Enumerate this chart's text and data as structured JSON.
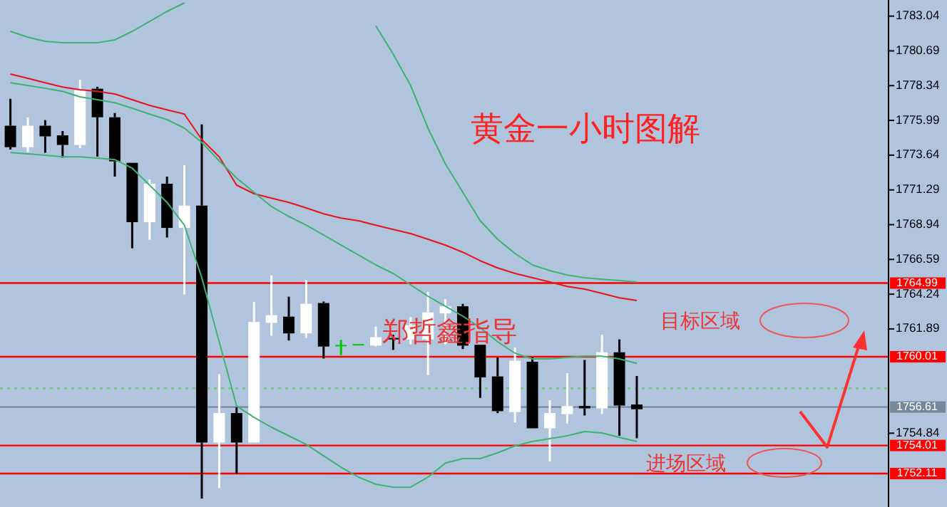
{
  "chart_data": {
    "type": "candlestick",
    "title": "黄金一小时图解",
    "annotations": [
      "郑哲鑫指导",
      "目标区域",
      "进场区域"
    ],
    "categories": [
      null,
      null,
      null,
      null,
      null,
      null,
      null,
      null,
      null,
      null,
      null,
      null,
      null,
      null,
      null,
      null,
      null,
      null,
      null,
      null,
      null,
      null,
      null,
      null,
      null,
      null,
      null,
      null,
      null,
      null,
      null,
      null,
      null,
      null,
      null,
      null,
      null
    ],
    "ohlc": [
      [
        1775.63,
        1777.45,
        1774.02,
        1774.18
      ],
      [
        1774.18,
        1776.2,
        1773.85,
        1775.63
      ],
      [
        1775.63,
        1776.01,
        1773.8,
        1774.91
      ],
      [
        1774.98,
        1775.27,
        1773.47,
        1774.33
      ],
      [
        1774.33,
        1778.74,
        1774.11,
        1778.03
      ],
      [
        1778.13,
        1778.26,
        1773.54,
        1776.2
      ],
      [
        1776.2,
        1776.49,
        1772.19,
        1773.22
      ],
      [
        1773.12,
        1773.12,
        1767.34,
        1769.11
      ],
      [
        1769.11,
        1772.0,
        1767.92,
        1771.71
      ],
      [
        1771.71,
        1772.19,
        1768.07,
        1768.72
      ],
      [
        1768.72,
        1772.96,
        1764.22,
        1770.23
      ],
      [
        1770.23,
        1775.72,
        1750.42,
        1754.21
      ],
      [
        1754.21,
        1758.83,
        1751.13,
        1756.2
      ],
      [
        1756.2,
        1756.59,
        1752.09,
        1754.21
      ],
      [
        1754.21,
        1763.71,
        1754.21,
        1762.36
      ],
      [
        1762.3,
        1765.51,
        1761.43,
        1762.82
      ],
      [
        1762.72,
        1764.07,
        1761.11,
        1761.59
      ],
      [
        1761.59,
        1765.19,
        1761.28,
        1763.59
      ],
      [
        1763.64,
        1763.74,
        1759.89,
        1760.7
      ],
      [
        1760.76,
        1761.14,
        1760.12,
        1760.76
      ],
      [
        1760.82,
        1760.82,
        1760.82,
        1760.82
      ],
      [
        1760.76,
        1762.05,
        1760.7,
        1761.33
      ],
      [
        1761.28,
        1761.5,
        1760.47,
        1761.18
      ],
      [
        1761.18,
        1762.68,
        1760.85,
        1762.14
      ],
      [
        1761.18,
        1764.39,
        1758.77,
        1763.01
      ],
      [
        1762.94,
        1763.9,
        1760.85,
        1763.42
      ],
      [
        1763.42,
        1763.59,
        1760.53,
        1760.76
      ],
      [
        1760.82,
        1760.82,
        1757.23,
        1758.61
      ],
      [
        1758.68,
        1759.96,
        1756.2,
        1756.33
      ],
      [
        1756.27,
        1760.63,
        1755.56,
        1759.74
      ],
      [
        1759.67,
        1759.99,
        1755.17,
        1755.17
      ],
      [
        1755.17,
        1757.07,
        1752.93,
        1756.2
      ],
      [
        1756.13,
        1758.9,
        1755.5,
        1756.68
      ],
      [
        1756.68,
        1759.79,
        1756.04,
        1756.52
      ],
      [
        1756.52,
        1761.5,
        1756.13,
        1760.31
      ],
      [
        1760.31,
        1761.18,
        1754.66,
        1756.71
      ],
      [
        1756.78,
        1758.71,
        1754.5,
        1756.46
      ]
    ],
    "colors": [
      "#000000",
      "#ffffff",
      "#000000",
      "#000000",
      "#ffffff",
      "#000000",
      "#000000",
      "#000000",
      "#ffffff",
      "#000000",
      "#ffffff",
      "#000000",
      "#ffffff",
      "#000000",
      "#ffffff",
      "#ffffff",
      "#000000",
      "#ffffff",
      "#000000",
      "#00c800",
      "#00c800",
      "#ffffff",
      "#000000",
      "#ffffff",
      "#ffffff",
      "#ffffff",
      "#000000",
      "#000000",
      "#000000",
      "#ffffff",
      "#000000",
      "#ffffff",
      "#ffffff",
      "#000000",
      "#ffffff",
      "#000000",
      "#000000"
    ],
    "series": [
      {
        "type": "line",
        "color": "#e8141c",
        "values": [
          1779.12,
          1778.83,
          1778.54,
          1778.25,
          1778.06,
          1777.96,
          1777.77,
          1777.39,
          1777.0,
          1776.71,
          1776.42,
          1774.69,
          1773.53,
          1771.61,
          1771.03,
          1770.74,
          1770.45,
          1770.07,
          1769.68,
          1769.39,
          1769.2,
          1768.91,
          1768.62,
          1768.34,
          1767.95,
          1767.56,
          1767.08,
          1766.5,
          1766.02,
          1765.64,
          1765.35,
          1765.06,
          1764.77,
          1764.58,
          1764.29,
          1764.0,
          1763.81
        ]
      },
      {
        "type": "line",
        "color": "#3cb371",
        "values": [
          1782.01,
          1781.62,
          1781.34,
          1781.24,
          1781.24,
          1781.24,
          1781.43,
          1782.01,
          1782.68,
          1783.36,
          1783.94,
          null,
          null,
          null,
          null,
          null,
          null,
          null,
          null,
          null,
          null,
          1782.39,
          1780.47,
          1778.35,
          1775.46,
          1773.05,
          1771.13,
          1769.2,
          1767.95,
          1766.99,
          1766.22,
          1765.83,
          1765.54,
          1765.35,
          1765.25,
          1765.16,
          1765.06
        ]
      },
      {
        "type": "line",
        "color": "#3cb371",
        "values": [
          1778.54,
          1778.35,
          1778.16,
          1777.96,
          1777.58,
          1777.39,
          1777.19,
          1776.81,
          1776.42,
          1776.04,
          1775.46,
          1774.5,
          1773.25,
          1772.09,
          1771.13,
          1770.17,
          1769.49,
          1768.91,
          1768.24,
          1767.56,
          1766.89,
          1766.22,
          1765.64,
          1764.87,
          1764.1,
          1763.42,
          1762.75,
          1761.98,
          1761.02,
          1760.25,
          1759.86,
          1759.86,
          1759.96,
          1760.05,
          1760.05,
          1759.86,
          1759.57
        ]
      },
      {
        "type": "line",
        "color": "#3cb371",
        "values": [
          1773.82,
          1773.73,
          1773.63,
          1773.53,
          1773.53,
          1773.44,
          1773.34,
          1772.76,
          1771.61,
          1770.45,
          1768.91,
          1765.35,
          1761.02,
          1756.68,
          1755.91,
          1755.24,
          1754.66,
          1754.08,
          1753.31,
          1752.54,
          1751.87,
          1751.39,
          1751.19,
          1751.19,
          1751.87,
          1752.83,
          1753.12,
          1753.12,
          1753.51,
          1753.99,
          1754.28,
          1754.47,
          1754.66,
          1754.95,
          1754.86,
          1754.56,
          1754.28
        ]
      }
    ],
    "ylim": [
      1749.85,
      1784.13
    ],
    "yticks": [
      1783.04,
      1780.69,
      1778.34,
      1775.99,
      1773.64,
      1771.29,
      1768.94,
      1766.59,
      1764.24,
      1761.89,
      1754.84
    ],
    "ref_lines": [
      {
        "axis": "y",
        "value": 1764.99,
        "label": "1764.99",
        "color": "#ff0000"
      },
      {
        "axis": "y",
        "value": 1760.01,
        "label": "1760.01",
        "color": "#ff0000"
      },
      {
        "axis": "y",
        "value": 1754.01,
        "label": "1754.01",
        "color": "#ff0000"
      },
      {
        "axis": "y",
        "value": 1752.11,
        "label": "1752.11",
        "color": "#ff0000"
      },
      {
        "axis": "y",
        "value": 1756.61,
        "label": "1756.61",
        "color": "#778899"
      },
      {
        "axis": "y",
        "value": 1757.87,
        "color": "#66cc66",
        "line_style": "dotted"
      }
    ],
    "tick_labels": "y",
    "grid": false
  }
}
